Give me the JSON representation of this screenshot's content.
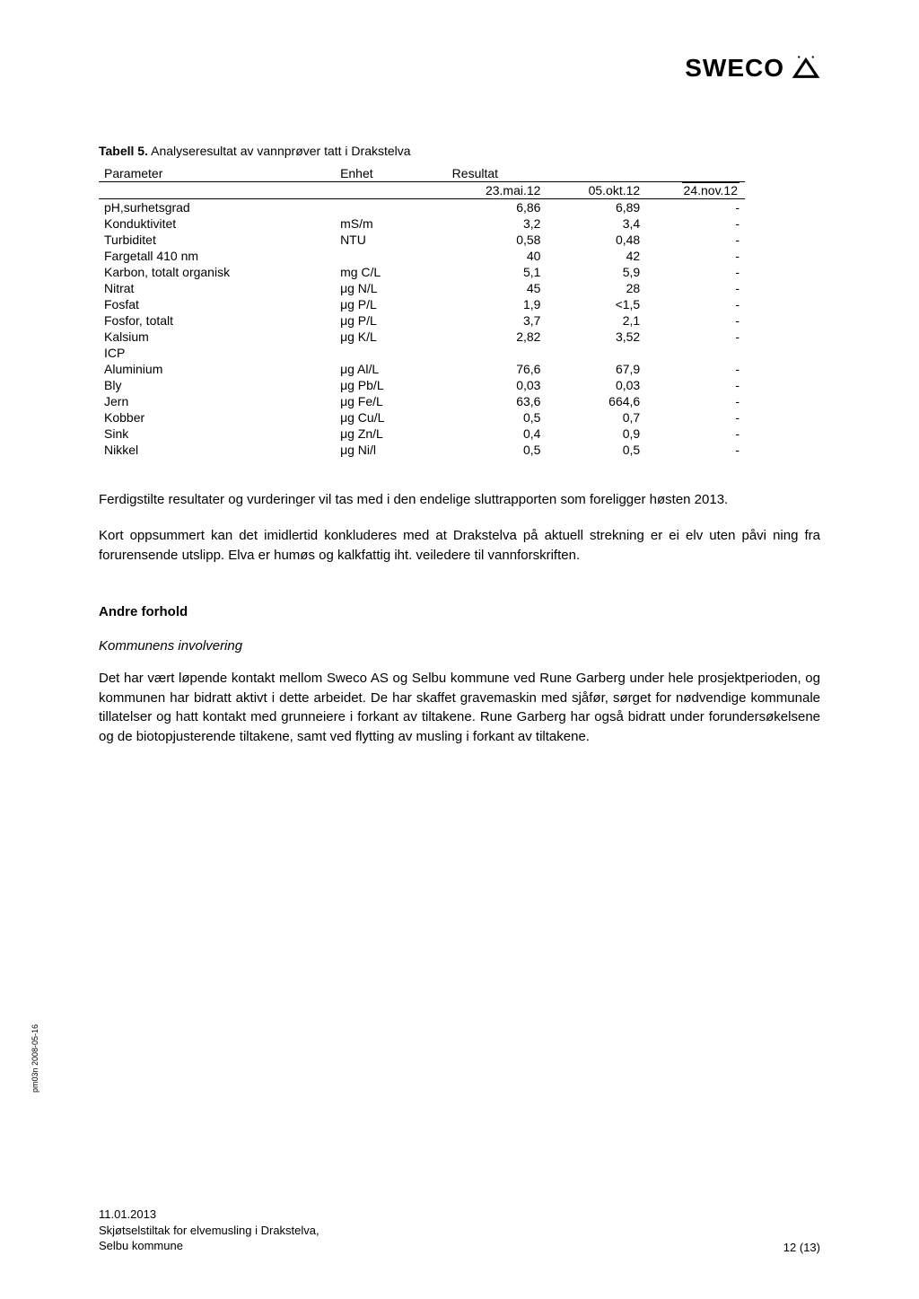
{
  "logo": {
    "text": "SWECO"
  },
  "table": {
    "caption_bold": "Tabell 5.",
    "caption_rest": " Analyseresultat av vannprøver tatt i Drakstelva",
    "header1": {
      "param": "Parameter",
      "unit": "Enhet",
      "result": "Resultat"
    },
    "header2": {
      "d1": "23.mai.12",
      "d2": "05.okt.12",
      "d3": "24.nov.12"
    },
    "rows": [
      {
        "param": "pH,surhetsgrad",
        "unit": "",
        "v1": "6,86",
        "v2": "6,89",
        "v3": "-"
      },
      {
        "param": "Konduktivitet",
        "unit": "mS/m",
        "v1": "3,2",
        "v2": "3,4",
        "v3": "-"
      },
      {
        "param": "Turbiditet",
        "unit": "NTU",
        "v1": "0,58",
        "v2": "0,48",
        "v3": "-"
      },
      {
        "param": "Fargetall 410 nm",
        "unit": "",
        "v1": "40",
        "v2": "42",
        "v3": "-"
      },
      {
        "param": "Karbon, totalt organisk",
        "unit": "mg C/L",
        "v1": "5,1",
        "v2": "5,9",
        "v3": "-"
      },
      {
        "param": "Nitrat",
        "unit": "μg N/L",
        "v1": "45",
        "v2": "28",
        "v3": "-"
      },
      {
        "param": "Fosfat",
        "unit": "μg P/L",
        "v1": "1,9",
        "v2": "<1,5",
        "v3": "-"
      },
      {
        "param": "Fosfor, totalt",
        "unit": "μg P/L",
        "v1": "3,7",
        "v2": "2,1",
        "v3": "-"
      },
      {
        "param": "Kalsium",
        "unit": "μg K/L",
        "v1": "2,82",
        "v2": "3,52",
        "v3": "-"
      },
      {
        "param": "ICP",
        "unit": "",
        "v1": "",
        "v2": "",
        "v3": ""
      },
      {
        "param": "Aluminium",
        "unit": "μg Al/L",
        "v1": "76,6",
        "v2": "67,9",
        "v3": "-"
      },
      {
        "param": "Bly",
        "unit": "μg Pb/L",
        "v1": "0,03",
        "v2": "0,03",
        "v3": "-"
      },
      {
        "param": "Jern",
        "unit": "μg Fe/L",
        "v1": "63,6",
        "v2": "664,6",
        "v3": "-"
      },
      {
        "param": "Kobber",
        "unit": "μg Cu/L",
        "v1": "0,5",
        "v2": "0,7",
        "v3": "-"
      },
      {
        "param": "Sink",
        "unit": "μg Zn/L",
        "v1": "0,4",
        "v2": "0,9",
        "v3": "-"
      },
      {
        "param": "Nikkel",
        "unit": "μg Ni/l",
        "v1": "0,5",
        "v2": "0,5",
        "v3": "-"
      }
    ]
  },
  "paragraphs": {
    "p1": "Ferdigstilte resultater og vurderinger vil tas med i den endelige sluttrapporten som foreligger høsten 2013.",
    "p2": "Kort oppsummert kan det imidlertid konkluderes med at Drakstelva på aktuell strekning er ei elv uten påvi  ning fra forurensende utslipp. Elva er humøs og kalkfattig iht. veiledere til vannforskriften."
  },
  "andre": {
    "title": "Andre forhold",
    "subtitle": "Kommunens involvering",
    "body": "Det har vært løpende kontakt mellom Sweco AS og Selbu kommune ved Rune Garberg under hele prosjektperioden, og kommunen har bidratt aktivt i dette arbeidet. De har skaffet gravemaskin med sjåfør, sørget for nødvendige kommunale tillatelser og hatt kontakt med grunneiere i forkant av tiltakene. Rune Garberg har også bidratt under forundersøkelsene og de biotopjusterende tiltakene, samt ved flytting av musling i forkant av tiltakene."
  },
  "side_label": "pm03n 2008-05-16",
  "footer": {
    "date": "11.01.2013",
    "line1": "Skjøtselstiltak for elvemusling i Drakstelva,",
    "line2": "Selbu kommune",
    "page": "12 (13)"
  }
}
